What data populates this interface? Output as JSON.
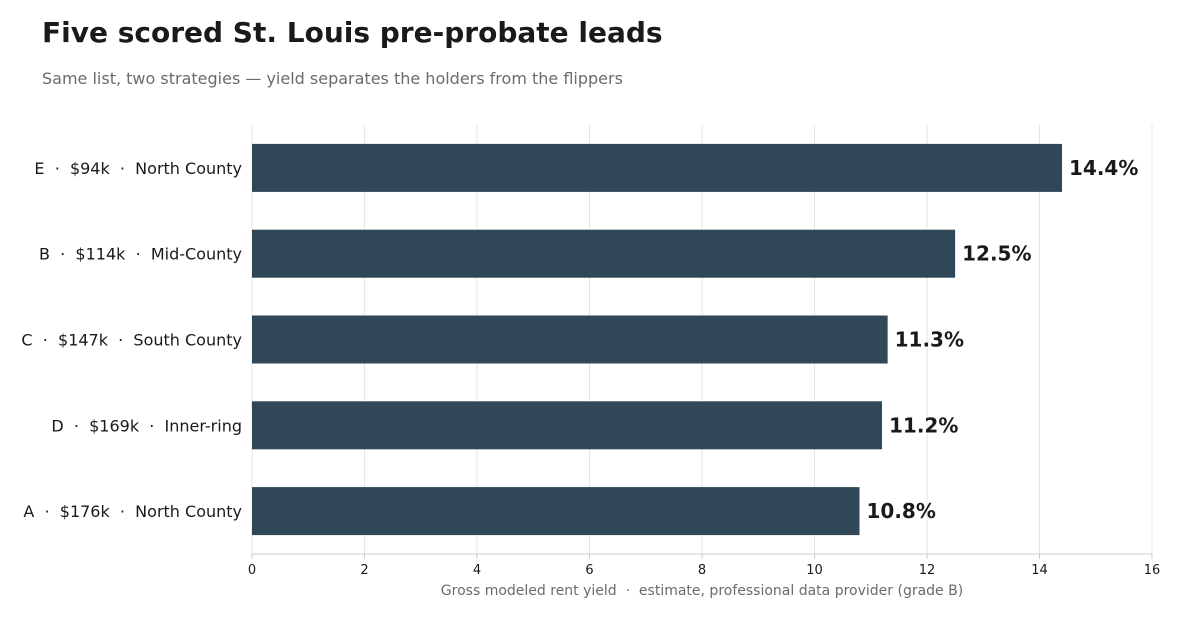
{
  "title": "Five scored St. Louis pre-probate leads",
  "subtitle": "Same list, two strategies — yield separates the holders from the flippers",
  "colors": {
    "bar": "#2f4756",
    "grid": "#e6e6e6",
    "axis": "#cccccc"
  },
  "chart_data": {
    "type": "bar",
    "orientation": "horizontal",
    "categories": [
      "E  ·  $94k  ·  North County",
      "B  ·  $114k  ·  Mid-County",
      "C  ·  $147k  ·  South County",
      "D  ·  $169k  ·  Inner-ring",
      "A  ·  $176k  ·  North County"
    ],
    "values": [
      14.4,
      12.5,
      11.3,
      11.2,
      10.8
    ],
    "value_labels": [
      "14.4%",
      "12.5%",
      "11.3%",
      "11.2%",
      "10.8%"
    ],
    "xlabel": "Gross modeled rent yield  ·  estimate, professional data provider (grade B)",
    "xlim": [
      0,
      16
    ],
    "xticks": [
      0,
      2,
      4,
      6,
      8,
      10,
      12,
      14,
      16
    ],
    "grid": true,
    "legend": "none"
  }
}
